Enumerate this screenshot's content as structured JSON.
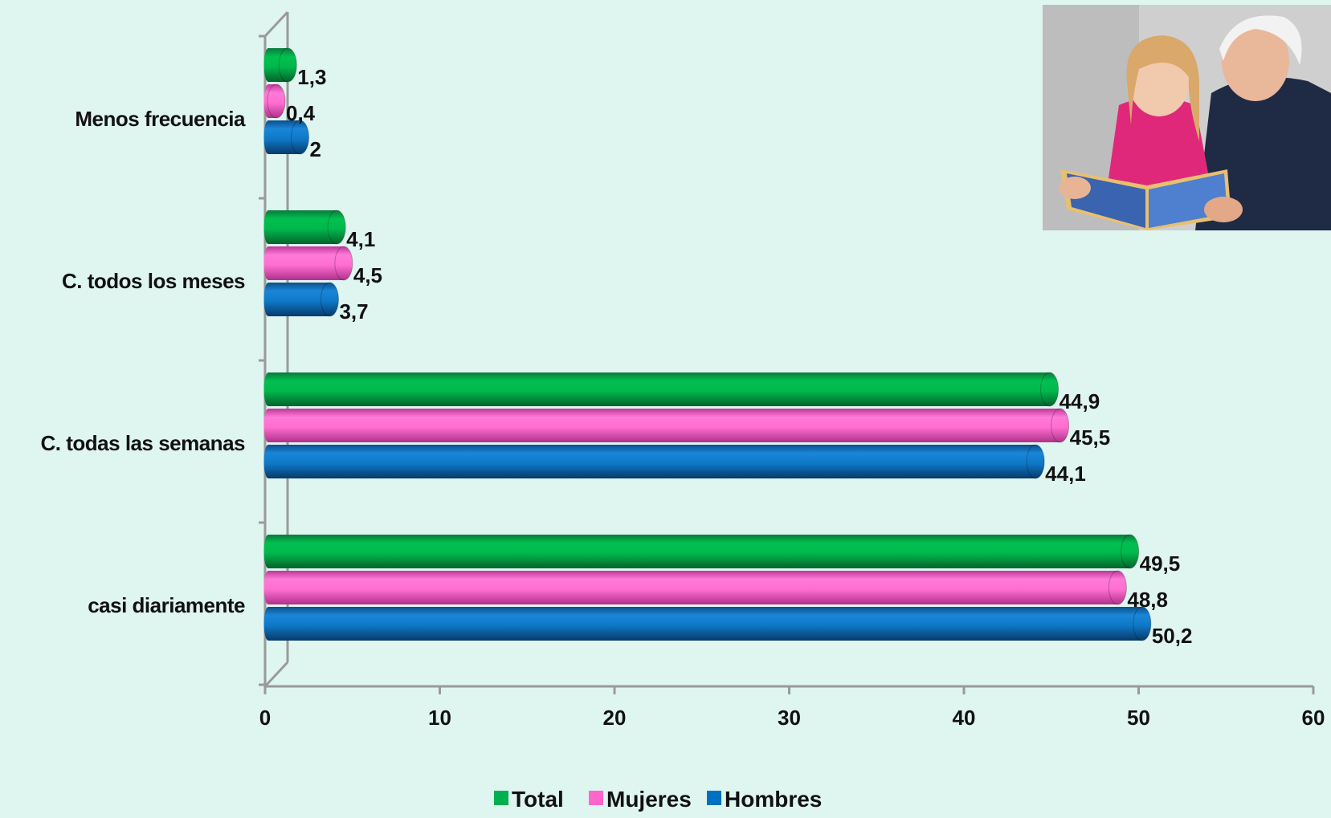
{
  "chart_data": {
    "type": "bar",
    "orientation": "horizontal",
    "categories": [
      "Menos frecuencia",
      "C. todos los meses",
      "C. todas las semanas",
      "casi diariamente"
    ],
    "series": [
      {
        "name": "Total",
        "color": "#00b050",
        "values": [
          1.3,
          4.1,
          44.9,
          49.5
        ]
      },
      {
        "name": "Mujeres",
        "color": "#ff66cc",
        "values": [
          0.4,
          4.5,
          45.5,
          48.8
        ]
      },
      {
        "name": "Hombres",
        "color": "#0070c0",
        "values": [
          2,
          3.7,
          44.1,
          50.2
        ]
      }
    ],
    "value_labels": [
      [
        "1,3",
        "4,1",
        "44,9",
        "49,5"
      ],
      [
        "0,4",
        "4,5",
        "45,5",
        "48,8"
      ],
      [
        "2",
        "3,7",
        "44,1",
        "50,2"
      ]
    ],
    "xlim": [
      0,
      60
    ],
    "xticks": [
      0,
      10,
      20,
      30,
      40,
      50,
      60
    ],
    "xtick_labels": [
      "0",
      "10",
      "20",
      "30",
      "40",
      "50",
      "60"
    ],
    "title": "",
    "xlabel": "",
    "ylabel": "",
    "legend_position": "bottom",
    "grid": false
  },
  "photo": {
    "icon": "photo-grandfather-reading-to-child"
  }
}
